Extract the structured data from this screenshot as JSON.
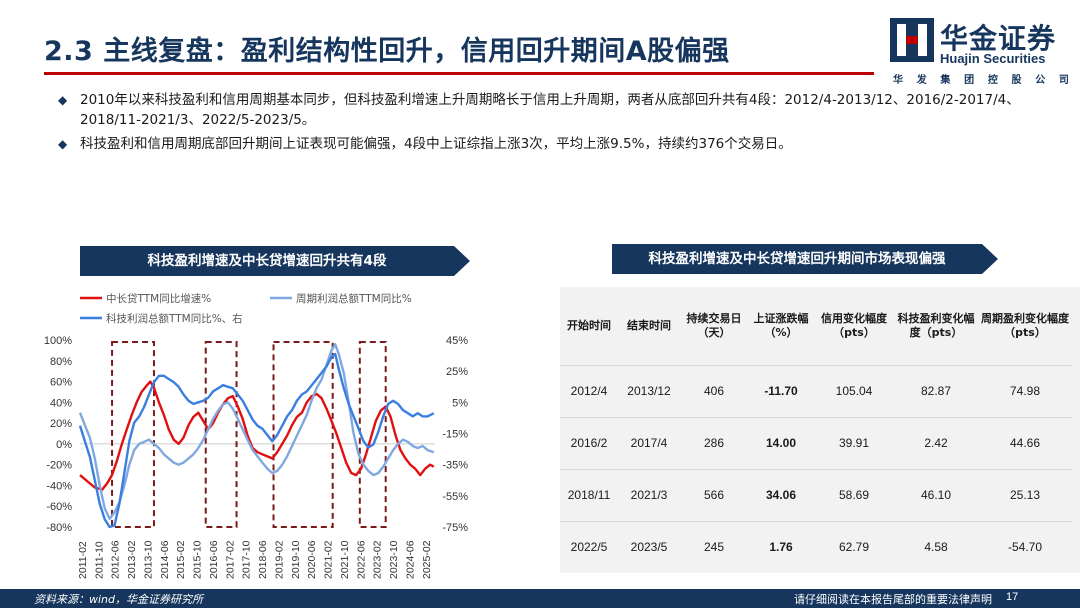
{
  "page": {
    "title": "2.3 主线复盘：盈利结构性回升，信用回升期间A股偏强",
    "logo_cn": "华金证券",
    "logo_en": "Huajin Securities",
    "logo_sub": [
      "华",
      "发",
      "集",
      "团",
      "控",
      "股",
      "公",
      "司"
    ],
    "bullets": [
      "2010年以来科技盈利和信用周期基本同步，但科技盈利增速上升周期略长于信用上升周期，两者从底部回升共有4段：2012/4-2013/12、2016/2-2017/4、2018/11-2021/3、2022/5-2023/5。",
      "科技盈利和信用周期底部回升期间上证表现可能偏强，4段中上证综指上涨3次，平均上涨9.5%，持续约376个交易日。"
    ],
    "left_header": "科技盈利增速及中长贷增速回升共有4段",
    "right_header": "科技盈利增速及中长贷增速回升期间市场表现偏强",
    "footer_source": "资料来源：wind，华金证券研究所",
    "footer_disclaimer": "请仔细阅读在本报告尾部的重要法律声明",
    "page_number": "17"
  },
  "colors": {
    "navy": "#17365d",
    "red_rule": "#c00000",
    "credit_line": "#e01010",
    "cyclical_line": "#7fa8e0",
    "tech_line": "#3a7fe0",
    "period_box": "#7b1a1a",
    "negative": "#00a050",
    "positive": "#e00000"
  },
  "chart_data": {
    "type": "line",
    "legend": [
      {
        "name": "中长贷TTM同比增速%",
        "color": "#e01010"
      },
      {
        "name": "周期利润总额TTM同比%",
        "color": "#7fa8e0"
      },
      {
        "name": "科技利润总额TTM同比%、右",
        "color": "#3a7fe0"
      }
    ],
    "left_ticks": [
      "100%",
      "80%",
      "60%",
      "40%",
      "20%",
      "0%",
      "-20%",
      "-40%",
      "-60%",
      "-80%"
    ],
    "right_ticks": [
      "45%",
      "25%",
      "5%",
      "-15%",
      "-35%",
      "-55%",
      "-75%"
    ],
    "ylim_left": [
      -80,
      100
    ],
    "ylim_right": [
      -75,
      45
    ],
    "x_ticks": [
      "2011-02",
      "2011-10",
      "2012-06",
      "2013-02",
      "2013-10",
      "2014-06",
      "2015-02",
      "2015-10",
      "2016-06",
      "2017-02",
      "2017-10",
      "2018-06",
      "2019-02",
      "2019-10",
      "2020-06",
      "2021-02",
      "2021-10",
      "2022-06",
      "2023-02",
      "2023-10",
      "2024-06",
      "2025-02"
    ],
    "x_start": 2011.0,
    "x_end": 2025.4,
    "periods": [
      [
        2012.3,
        2014.0
      ],
      [
        2016.1,
        2017.35
      ],
      [
        2018.85,
        2021.25
      ],
      [
        2022.35,
        2023.4
      ]
    ],
    "series": [
      {
        "name": "中长贷TTM同比增速%",
        "axis": "left",
        "points": [
          [
            2011.0,
            -30
          ],
          [
            2011.3,
            -36
          ],
          [
            2011.6,
            -42
          ],
          [
            2011.9,
            -44
          ],
          [
            2012.1,
            -38
          ],
          [
            2012.3,
            -30
          ],
          [
            2012.5,
            -16
          ],
          [
            2012.7,
            0
          ],
          [
            2012.9,
            14
          ],
          [
            2013.1,
            28
          ],
          [
            2013.3,
            40
          ],
          [
            2013.5,
            50
          ],
          [
            2013.7,
            56
          ],
          [
            2013.85,
            60
          ],
          [
            2014.0,
            54
          ],
          [
            2014.2,
            40
          ],
          [
            2014.4,
            28
          ],
          [
            2014.6,
            14
          ],
          [
            2014.8,
            4
          ],
          [
            2015.0,
            0
          ],
          [
            2015.2,
            6
          ],
          [
            2015.4,
            18
          ],
          [
            2015.6,
            26
          ],
          [
            2015.8,
            30
          ],
          [
            2016.0,
            22
          ],
          [
            2016.2,
            14
          ],
          [
            2016.4,
            20
          ],
          [
            2016.6,
            30
          ],
          [
            2016.8,
            38
          ],
          [
            2017.0,
            44
          ],
          [
            2017.2,
            46
          ],
          [
            2017.4,
            36
          ],
          [
            2017.6,
            24
          ],
          [
            2017.8,
            8
          ],
          [
            2018.0,
            -4
          ],
          [
            2018.2,
            -8
          ],
          [
            2018.4,
            -10
          ],
          [
            2018.6,
            -12
          ],
          [
            2018.8,
            -14
          ],
          [
            2019.0,
            -8
          ],
          [
            2019.2,
            0
          ],
          [
            2019.4,
            8
          ],
          [
            2019.6,
            18
          ],
          [
            2019.8,
            26
          ],
          [
            2020.0,
            30
          ],
          [
            2020.2,
            40
          ],
          [
            2020.4,
            46
          ],
          [
            2020.6,
            48
          ],
          [
            2020.8,
            44
          ],
          [
            2021.0,
            34
          ],
          [
            2021.2,
            22
          ],
          [
            2021.4,
            10
          ],
          [
            2021.6,
            -4
          ],
          [
            2021.8,
            -18
          ],
          [
            2022.0,
            -28
          ],
          [
            2022.2,
            -30
          ],
          [
            2022.4,
            -24
          ],
          [
            2022.6,
            -10
          ],
          [
            2022.8,
            6
          ],
          [
            2023.0,
            22
          ],
          [
            2023.2,
            32
          ],
          [
            2023.4,
            36
          ],
          [
            2023.6,
            26
          ],
          [
            2023.8,
            8
          ],
          [
            2024.0,
            -6
          ],
          [
            2024.2,
            -14
          ],
          [
            2024.4,
            -20
          ],
          [
            2024.6,
            -24
          ],
          [
            2024.8,
            -30
          ],
          [
            2025.0,
            -24
          ],
          [
            2025.2,
            -20
          ],
          [
            2025.35,
            -22
          ]
        ]
      },
      {
        "name": "周期利润总额TTM同比%",
        "axis": "left",
        "points": [
          [
            2011.0,
            30
          ],
          [
            2011.2,
            18
          ],
          [
            2011.4,
            6
          ],
          [
            2011.6,
            -14
          ],
          [
            2011.8,
            -40
          ],
          [
            2012.0,
            -62
          ],
          [
            2012.2,
            -72
          ],
          [
            2012.4,
            -66
          ],
          [
            2012.6,
            -56
          ],
          [
            2012.8,
            -40
          ],
          [
            2013.0,
            -20
          ],
          [
            2013.2,
            -6
          ],
          [
            2013.4,
            0
          ],
          [
            2013.6,
            2
          ],
          [
            2013.8,
            4
          ],
          [
            2014.0,
            0
          ],
          [
            2014.2,
            -4
          ],
          [
            2014.4,
            -10
          ],
          [
            2014.6,
            -14
          ],
          [
            2014.8,
            -18
          ],
          [
            2015.0,
            -20
          ],
          [
            2015.2,
            -18
          ],
          [
            2015.4,
            -14
          ],
          [
            2015.6,
            -10
          ],
          [
            2015.8,
            -4
          ],
          [
            2016.0,
            4
          ],
          [
            2016.2,
            14
          ],
          [
            2016.4,
            24
          ],
          [
            2016.6,
            32
          ],
          [
            2016.8,
            38
          ],
          [
            2017.0,
            40
          ],
          [
            2017.2,
            34
          ],
          [
            2017.4,
            24
          ],
          [
            2017.6,
            14
          ],
          [
            2017.8,
            4
          ],
          [
            2018.0,
            -6
          ],
          [
            2018.2,
            -12
          ],
          [
            2018.4,
            -18
          ],
          [
            2018.6,
            -24
          ],
          [
            2018.8,
            -28
          ],
          [
            2019.0,
            -26
          ],
          [
            2019.2,
            -20
          ],
          [
            2019.4,
            -12
          ],
          [
            2019.6,
            -2
          ],
          [
            2019.8,
            8
          ],
          [
            2020.0,
            18
          ],
          [
            2020.2,
            28
          ],
          [
            2020.4,
            42
          ],
          [
            2020.6,
            54
          ],
          [
            2020.8,
            62
          ],
          [
            2021.0,
            76
          ],
          [
            2021.2,
            90
          ],
          [
            2021.35,
            96
          ],
          [
            2021.5,
            86
          ],
          [
            2021.7,
            68
          ],
          [
            2021.9,
            40
          ],
          [
            2022.1,
            10
          ],
          [
            2022.3,
            -10
          ],
          [
            2022.5,
            -20
          ],
          [
            2022.7,
            -26
          ],
          [
            2022.9,
            -30
          ],
          [
            2023.1,
            -28
          ],
          [
            2023.3,
            -22
          ],
          [
            2023.5,
            -14
          ],
          [
            2023.7,
            -6
          ],
          [
            2023.9,
            0
          ],
          [
            2024.1,
            4
          ],
          [
            2024.3,
            2
          ],
          [
            2024.5,
            -2
          ],
          [
            2024.7,
            -4
          ],
          [
            2024.9,
            -2
          ],
          [
            2025.1,
            -6
          ],
          [
            2025.35,
            -8
          ]
        ]
      },
      {
        "name": "科技利润总额TTM同比%、右",
        "axis": "right",
        "points": [
          [
            2011.0,
            -10
          ],
          [
            2011.2,
            -20
          ],
          [
            2011.4,
            -30
          ],
          [
            2011.6,
            -45
          ],
          [
            2011.8,
            -60
          ],
          [
            2012.0,
            -70
          ],
          [
            2012.2,
            -75
          ],
          [
            2012.4,
            -74
          ],
          [
            2012.6,
            -60
          ],
          [
            2012.8,
            -40
          ],
          [
            2013.0,
            -20
          ],
          [
            2013.2,
            -8
          ],
          [
            2013.4,
            -4
          ],
          [
            2013.6,
            2
          ],
          [
            2013.8,
            10
          ],
          [
            2014.0,
            18
          ],
          [
            2014.2,
            22
          ],
          [
            2014.4,
            22
          ],
          [
            2014.6,
            20
          ],
          [
            2014.8,
            18
          ],
          [
            2015.0,
            15
          ],
          [
            2015.2,
            10
          ],
          [
            2015.4,
            6
          ],
          [
            2015.6,
            4
          ],
          [
            2015.8,
            5
          ],
          [
            2016.0,
            6
          ],
          [
            2016.2,
            8
          ],
          [
            2016.4,
            12
          ],
          [
            2016.6,
            14
          ],
          [
            2016.8,
            16
          ],
          [
            2017.0,
            15
          ],
          [
            2017.2,
            14
          ],
          [
            2017.4,
            10
          ],
          [
            2017.6,
            6
          ],
          [
            2017.8,
            0
          ],
          [
            2018.0,
            -6
          ],
          [
            2018.2,
            -10
          ],
          [
            2018.4,
            -12
          ],
          [
            2018.6,
            -16
          ],
          [
            2018.8,
            -20
          ],
          [
            2019.0,
            -16
          ],
          [
            2019.2,
            -10
          ],
          [
            2019.4,
            -4
          ],
          [
            2019.6,
            0
          ],
          [
            2019.8,
            6
          ],
          [
            2020.0,
            10
          ],
          [
            2020.2,
            12
          ],
          [
            2020.4,
            16
          ],
          [
            2020.6,
            20
          ],
          [
            2020.8,
            24
          ],
          [
            2021.0,
            28
          ],
          [
            2021.2,
            34
          ],
          [
            2021.35,
            36
          ],
          [
            2021.5,
            26
          ],
          [
            2021.7,
            14
          ],
          [
            2021.9,
            4
          ],
          [
            2022.1,
            -4
          ],
          [
            2022.3,
            -12
          ],
          [
            2022.5,
            -20
          ],
          [
            2022.7,
            -24
          ],
          [
            2022.9,
            -22
          ],
          [
            2023.1,
            -14
          ],
          [
            2023.3,
            -4
          ],
          [
            2023.5,
            4
          ],
          [
            2023.7,
            6
          ],
          [
            2023.9,
            4
          ],
          [
            2024.1,
            0
          ],
          [
            2024.3,
            -2
          ],
          [
            2024.5,
            -4
          ],
          [
            2024.7,
            -2
          ],
          [
            2024.9,
            -4
          ],
          [
            2025.1,
            -4
          ],
          [
            2025.35,
            -2
          ]
        ]
      }
    ]
  },
  "table": {
    "headers": [
      "开始时间",
      "结束时间",
      "持续交易日（天）",
      "上证涨跌幅（%）",
      "信用变化幅度（pts）",
      "科技盈利变化幅度（pts）",
      "周期盈利变化幅度（pts）"
    ],
    "rows": [
      [
        "2012/4",
        "2013/12",
        "406",
        "-11.70",
        "105.04",
        "82.87",
        "74.98"
      ],
      [
        "2016/2",
        "2017/4",
        "286",
        "14.00",
        "39.91",
        "2.42",
        "44.66"
      ],
      [
        "2018/11",
        "2021/3",
        "566",
        "34.06",
        "58.69",
        "46.10",
        "25.13"
      ],
      [
        "2022/5",
        "2023/5",
        "245",
        "1.76",
        "62.79",
        "4.58",
        "-54.70"
      ]
    ]
  }
}
